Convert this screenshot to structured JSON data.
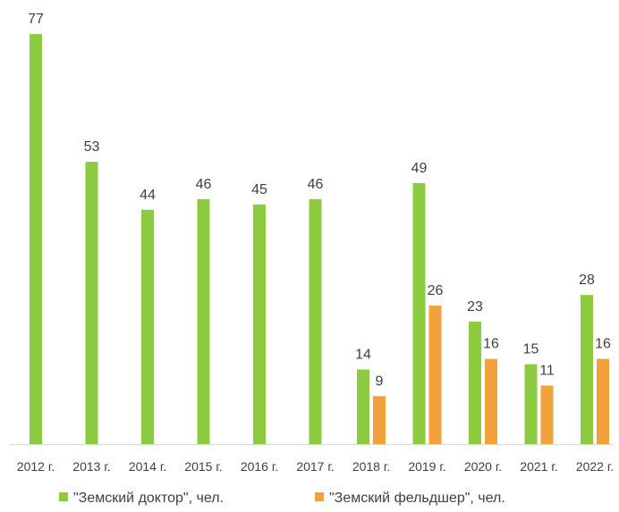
{
  "chart_data": {
    "type": "bar",
    "categories": [
      "2012 г.",
      "2013 г.",
      "2014 г.",
      "2015 г.",
      "2016 г.",
      "2017 г.",
      "2018 г.",
      "2019 г.",
      "2020 г.",
      "2021 г.",
      "2022 г."
    ],
    "series": [
      {
        "name": "\"Земский доктор\", чел.",
        "color": "#8CCB3F",
        "values": [
          77,
          53,
          44,
          46,
          45,
          46,
          14,
          49,
          23,
          15,
          28
        ]
      },
      {
        "name": "\"Земский фельдшер\", чел.",
        "color": "#F2A23A",
        "values": [
          null,
          null,
          null,
          null,
          null,
          null,
          9,
          26,
          16,
          11,
          16
        ]
      }
    ],
    "title": "",
    "xlabel": "",
    "ylabel": "",
    "ylim": [
      0,
      80
    ],
    "grid": false,
    "legend": "bottom"
  }
}
